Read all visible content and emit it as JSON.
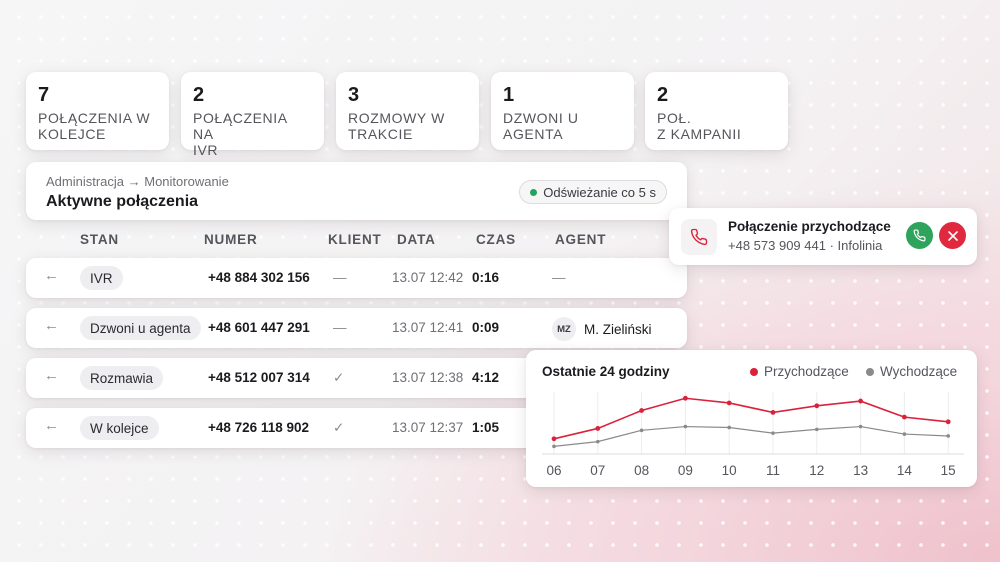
{
  "stats": [
    {
      "value": "7",
      "label": "POŁĄCZENIA W\nKOLEJCE"
    },
    {
      "value": "2",
      "label": "POŁĄCZENIA NA\nIVR"
    },
    {
      "value": "3",
      "label": "ROZMOWY W\nTRAKCIE"
    },
    {
      "value": "1",
      "label": "DZWONI U\nAGENTA"
    },
    {
      "value": "2",
      "label": "POŁ.\nZ KAMPANII"
    }
  ],
  "header": {
    "breadcrumb": "Administracja → Monitorowanie",
    "title": "Aktywne połączenia",
    "refresh_label": "Odświeżanie co 5 s",
    "refresh_dot_color": "#22a55a"
  },
  "table": {
    "columns": [
      "STAN",
      "NUMER",
      "KLIENT",
      "DATA",
      "CZAS",
      "AGENT"
    ],
    "rows": [
      {
        "direction_icon": "arrow-left-icon",
        "status": "IVR",
        "number": "+48 884 302 156",
        "client": "—",
        "date": "13.07 12:42",
        "duration": "0:16",
        "agent": "—",
        "agent_initials": ""
      },
      {
        "direction_icon": "arrow-left-icon",
        "status": "Dzwoni u agenta",
        "number": "+48 601 447 291",
        "client": "—",
        "date": "13.07 12:41",
        "duration": "0:09",
        "agent": "M. Zieliński",
        "agent_initials": "MZ"
      },
      {
        "direction_icon": "arrow-left-icon",
        "status": "Rozmawia",
        "number": "+48 512 007 314",
        "client": "✓",
        "date": "13.07 12:38",
        "duration": "4:12",
        "agent": "",
        "agent_initials": ""
      },
      {
        "direction_icon": "arrow-left-icon",
        "status": "W kolejce",
        "number": "+48 726 118 902",
        "client": "✓",
        "date": "13.07 12:37",
        "duration": "1:05",
        "agent": "",
        "agent_initials": ""
      }
    ]
  },
  "incoming_call": {
    "title": "Połączenie przychodzące",
    "subtitle": "+48 573 909 441 · Infolinia",
    "icon": "phone-icon",
    "accept_color": "#2ea35b",
    "reject_color": "#e0283f"
  },
  "chart_data": {
    "type": "line",
    "title": "Ostatnie 24 godziny",
    "categories": [
      "06",
      "07",
      "08",
      "09",
      "10",
      "11",
      "12",
      "13",
      "14",
      "15"
    ],
    "series": [
      {
        "name": "Przychodzące",
        "color": "#d9223c",
        "values": [
          14,
          25,
          44,
          57,
          52,
          42,
          49,
          54,
          37,
          32
        ]
      },
      {
        "name": "Wychodzące",
        "color": "#8a8a8a",
        "values": [
          6,
          11,
          23,
          27,
          26,
          20,
          24,
          27,
          19,
          17
        ]
      }
    ],
    "ylim": [
      0,
      70
    ],
    "grid": "vertical",
    "legend": "top-right"
  }
}
